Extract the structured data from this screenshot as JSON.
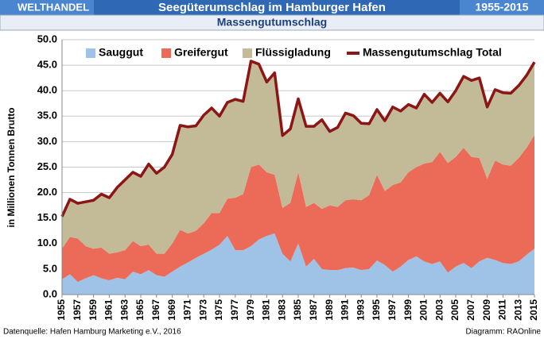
{
  "header": {
    "left": "WELTHANDEL",
    "right": "1955-2015"
  },
  "footer": {
    "source": "Datenquelle: Hafen Hamburg Marketing e.V., 2016",
    "credit": "Diagramm: RAOnline"
  },
  "chart_data": {
    "type": "stacked_area",
    "title": "Seegüterumschlag im Hamburger Hafen",
    "subtitle": "Massengutumschlag",
    "y_label": "in Millionen Tonnen Brutto",
    "x": [
      1955,
      1956,
      1957,
      1958,
      1959,
      1960,
      1961,
      1962,
      1963,
      1964,
      1965,
      1966,
      1967,
      1968,
      1969,
      1970,
      1971,
      1972,
      1973,
      1974,
      1975,
      1976,
      1977,
      1978,
      1979,
      1980,
      1981,
      1982,
      1983,
      1984,
      1985,
      1986,
      1987,
      1988,
      1989,
      1990,
      1991,
      1992,
      1993,
      1994,
      1995,
      1996,
      1997,
      1998,
      1999,
      2000,
      2001,
      2002,
      2003,
      2004,
      2005,
      2006,
      2007,
      2008,
      2009,
      2010,
      2011,
      2012,
      2013,
      2014,
      2015
    ],
    "xlim": [
      1955,
      2015
    ],
    "xticks": [
      1955,
      1957,
      1959,
      1961,
      1963,
      1965,
      1967,
      1969,
      1971,
      1973,
      1975,
      1977,
      1979,
      1981,
      1983,
      1985,
      1987,
      1989,
      1991,
      1993,
      1995,
      1997,
      1999,
      2001,
      2003,
      2005,
      2007,
      2009,
      2011,
      2013,
      2015
    ],
    "ylim": [
      0,
      50
    ],
    "yticks": [
      {
        "value": 0,
        "label": "0.0"
      },
      {
        "value": 5,
        "label": "5.0"
      },
      {
        "value": 10,
        "label": "10.0"
      },
      {
        "value": 15,
        "label": "15.0"
      },
      {
        "value": 20,
        "label": "20.0"
      },
      {
        "value": 25,
        "label": "25.0"
      },
      {
        "value": 30,
        "label": "30.0"
      },
      {
        "value": 35,
        "label": "35.0"
      },
      {
        "value": 40,
        "label": "40.0"
      },
      {
        "value": 45,
        "label": "45.0"
      },
      {
        "value": 50,
        "label": "50.0"
      }
    ],
    "grid": true,
    "legend": "top",
    "series": [
      {
        "name": "Sauggut",
        "color": "#9ec3e6",
        "values": [
          3.0,
          4.0,
          2.5,
          3.2,
          3.8,
          3.2,
          2.8,
          3.3,
          3.0,
          4.5,
          4.0,
          4.8,
          3.8,
          3.5,
          4.5,
          5.5,
          6.3,
          7.2,
          8.0,
          8.8,
          9.8,
          11.5,
          8.7,
          8.7,
          9.5,
          10.8,
          11.5,
          12.0,
          8.0,
          6.5,
          10.0,
          5.5,
          7.0,
          5.0,
          4.8,
          4.8,
          5.2,
          5.3,
          4.8,
          5.0,
          6.7,
          5.8,
          4.5,
          5.5,
          6.8,
          7.5,
          6.5,
          6.0,
          6.5,
          4.3,
          5.5,
          6.2,
          5.2,
          6.5,
          7.2,
          6.8,
          6.2,
          6.0,
          6.5,
          7.8,
          9.0
        ]
      },
      {
        "name": "Greifergut",
        "color": "#ec6b58",
        "values": [
          6.0,
          7.3,
          8.5,
          6.3,
          5.2,
          6.0,
          5.2,
          5.0,
          5.7,
          6.0,
          5.5,
          5.0,
          4.2,
          4.5,
          5.5,
          7.2,
          5.7,
          5.3,
          6.0,
          7.2,
          6.2,
          7.3,
          10.3,
          11.0,
          15.5,
          14.7,
          12.5,
          11.5,
          9.0,
          11.5,
          14.0,
          11.7,
          11.0,
          11.8,
          12.7,
          12.4,
          13.3,
          13.4,
          13.7,
          14.5,
          16.8,
          14.5,
          17.0,
          16.5,
          17.2,
          17.5,
          19.2,
          20.0,
          21.5,
          21.5,
          21.5,
          22.6,
          21.8,
          20.3,
          15.5,
          19.5,
          19.3,
          19.3,
          20.3,
          21.0,
          22.3
        ]
      },
      {
        "name": "Flüssigladung",
        "color": "#c3bb98",
        "values": [
          6.3,
          7.4,
          6.9,
          8.7,
          9.5,
          10.5,
          11.0,
          12.7,
          13.8,
          13.5,
          13.7,
          15.8,
          15.8,
          17.0,
          17.5,
          20.5,
          20.9,
          20.6,
          21.2,
          20.6,
          19.0,
          18.9,
          19.3,
          18.2,
          20.8,
          19.7,
          17.7,
          20.0,
          14.2,
          14.5,
          14.4,
          15.8,
          15.0,
          17.5,
          14.5,
          15.6,
          17.1,
          16.4,
          15.1,
          14.0,
          12.8,
          13.8,
          15.3,
          14.0,
          13.3,
          11.6,
          13.6,
          11.7,
          11.5,
          12.0,
          13.0,
          14.0,
          15.0,
          15.7,
          14.1,
          13.9,
          14.1,
          14.2,
          14.2,
          14.2,
          14.3
        ]
      },
      {
        "name": "Massengutumschlag Total",
        "type": "line",
        "color": "#8c1515",
        "values": [
          15.3,
          18.7,
          17.9,
          18.2,
          18.5,
          19.7,
          19.0,
          21.0,
          22.5,
          24.0,
          23.2,
          25.6,
          23.8,
          25.0,
          27.5,
          33.2,
          32.9,
          33.1,
          35.2,
          36.6,
          35.0,
          37.7,
          38.3,
          37.9,
          45.8,
          45.2,
          41.7,
          43.5,
          31.2,
          32.5,
          38.4,
          33.0,
          33.0,
          34.3,
          32.0,
          32.8,
          35.6,
          35.1,
          33.6,
          33.5,
          36.3,
          34.1,
          36.8,
          36.0,
          37.3,
          36.6,
          39.3,
          37.7,
          39.5,
          37.8,
          40.0,
          42.8,
          42.0,
          42.5,
          36.8,
          40.2,
          39.6,
          39.5,
          41.0,
          43.0,
          45.6
        ]
      }
    ]
  }
}
